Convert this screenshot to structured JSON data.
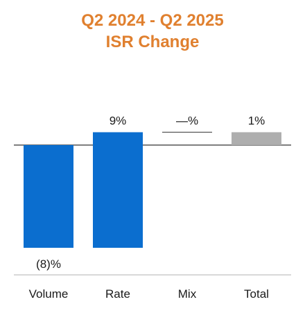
{
  "colors": {
    "title": "#E0802F",
    "negative_bar": "#0B6ECF",
    "positive_bar": "#0B6ECF",
    "total_bar": "#AEAEAE",
    "axis": "#555555",
    "baseline": "#B0B0B0"
  },
  "chart_data": {
    "type": "bar",
    "subtype": "waterfall",
    "title": "Q2 2024 - Q2 2025",
    "subtitle": "ISR Change",
    "categories": [
      "Volume",
      "Rate",
      "Mix",
      "Total"
    ],
    "values": [
      -8,
      9,
      0,
      1
    ],
    "data_labels": [
      "(8)%",
      "9%",
      "—%",
      "1%"
    ],
    "unit": "%",
    "xlabel": "",
    "ylabel": "",
    "grid": false,
    "legend": "none"
  }
}
